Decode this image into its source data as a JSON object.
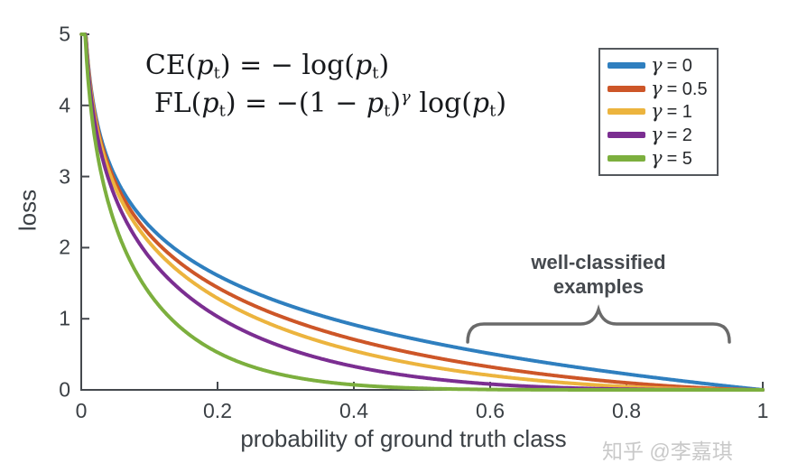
{
  "chart_data": {
    "type": "line",
    "title": "",
    "xlabel": "probability of ground truth class",
    "ylabel": "loss",
    "xlim": [
      0,
      1
    ],
    "ylim": [
      0,
      5
    ],
    "x_tick_values": [
      0,
      0.2,
      0.4,
      0.6,
      0.8,
      1
    ],
    "x_tick_labels": [
      "0",
      "0.2",
      "0.4",
      "0.6",
      "0.8",
      "1"
    ],
    "y_tick_values": [
      0,
      1,
      2,
      3,
      4,
      5
    ],
    "y_tick_labels": [
      "0",
      "1",
      "2",
      "3",
      "4",
      "5"
    ],
    "grid": false,
    "legend_position": "top-right",
    "curve_formula": "loss(p) = -(1-p)^gamma * ln(p), clipped to ylim max 5",
    "x_samples": [
      0.01,
      0.05,
      0.1,
      0.2,
      0.3,
      0.4,
      0.5,
      0.6,
      0.7,
      0.8,
      0.9,
      1.0
    ],
    "series": [
      {
        "name": "γ = 0",
        "label_symbol": "γ",
        "label_rest": "= 0",
        "gamma": 0,
        "color": "#2f7fbf",
        "values": [
          4.61,
          3.0,
          2.3,
          1.61,
          1.2,
          0.92,
          0.69,
          0.51,
          0.36,
          0.22,
          0.11,
          0
        ]
      },
      {
        "name": "γ = 0.5",
        "label_symbol": "γ",
        "label_rest": "= 0.5",
        "gamma": 0.5,
        "color": "#cd5628",
        "values": [
          4.58,
          2.92,
          2.18,
          1.44,
          1.01,
          0.71,
          0.49,
          0.32,
          0.2,
          0.1,
          0.03,
          0
        ]
      },
      {
        "name": "γ = 1",
        "label_symbol": "γ",
        "label_rest": "= 1",
        "gamma": 1,
        "color": "#ecb43e",
        "values": [
          4.56,
          2.85,
          2.07,
          1.29,
          0.84,
          0.55,
          0.35,
          0.2,
          0.11,
          0.04,
          0.01,
          0
        ]
      },
      {
        "name": "γ = 2",
        "label_symbol": "γ",
        "label_rest": "= 2",
        "gamma": 2,
        "color": "#7b2e91",
        "values": [
          4.52,
          2.71,
          1.87,
          1.03,
          0.59,
          0.33,
          0.17,
          0.08,
          0.03,
          0.01,
          0.001,
          0
        ]
      },
      {
        "name": "γ = 5",
        "label_symbol": "γ",
        "label_rest": "= 5",
        "gamma": 5,
        "color": "#7caf3e",
        "values": [
          4.38,
          2.32,
          1.36,
          0.53,
          0.2,
          0.07,
          0.02,
          0.005,
          0.001,
          0.0001,
          1e-05,
          0
        ]
      }
    ],
    "annotation": {
      "line1": "well-classified",
      "line2": "examples",
      "x_range": [
        0.567,
        0.951
      ]
    }
  },
  "equations": {
    "ce": [
      {
        "text": "CE(",
        "style": "plain"
      },
      {
        "text": "p",
        "style": "var"
      },
      {
        "text": "t",
        "style": "sub"
      },
      {
        "text": ") = ",
        "style": "plain"
      },
      {
        "text": "− log(",
        "style": "plain"
      },
      {
        "text": "p",
        "style": "var"
      },
      {
        "text": "t",
        "style": "sub"
      },
      {
        "text": ")",
        "style": "plain"
      }
    ],
    "fl": [
      {
        "text": "FL(",
        "style": "plain"
      },
      {
        "text": "p",
        "style": "var"
      },
      {
        "text": "t",
        "style": "sub"
      },
      {
        "text": ") = −(1 − ",
        "style": "plain"
      },
      {
        "text": "p",
        "style": "var"
      },
      {
        "text": "t",
        "style": "sub"
      },
      {
        "text": ")",
        "style": "plain"
      },
      {
        "text": "γ",
        "style": "sup"
      },
      {
        "text": " log(",
        "style": "plain"
      },
      {
        "text": "p",
        "style": "var"
      },
      {
        "text": "t",
        "style": "sub"
      },
      {
        "text": ")",
        "style": "plain"
      }
    ]
  },
  "watermark": {
    "text": "知乎 @李嘉琪"
  },
  "colors": {
    "axis": "#45494e",
    "tick_text": "#3b4045",
    "brace": "#6a6a6a",
    "legend_border": "#54585d",
    "annotation_text": "#45494e",
    "watermark": "#c9c9c9",
    "background": "#ffffff"
  }
}
